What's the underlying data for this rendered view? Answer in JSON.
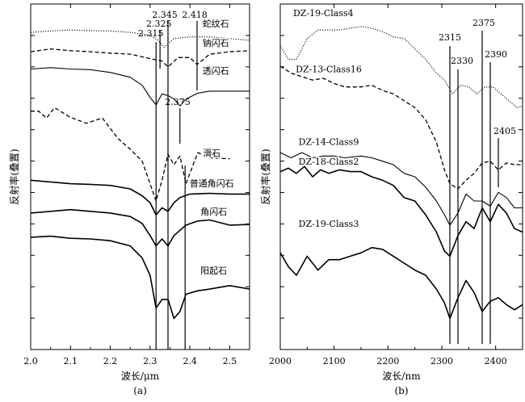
{
  "chart_data": [
    {
      "type": "line",
      "panel_label": "(a)",
      "xlabel": "波长/μm",
      "ylabel": "反射率(叠置)",
      "xlim": [
        2.0,
        2.55
      ],
      "x_ticks": [
        "2.0",
        "2.1",
        "2.2",
        "2.3",
        "2.4",
        "2.5"
      ],
      "x_tick_values": [
        2.0,
        2.1,
        2.2,
        2.3,
        2.4,
        2.5
      ],
      "ylim": [
        0,
        1
      ],
      "grid": false,
      "markers": [
        {
          "label": "2.315",
          "x": 2.315
        },
        {
          "label": "2.325",
          "x": 2.325
        },
        {
          "label": "2.345",
          "x": 2.345
        },
        {
          "label": "2.418",
          "x": 2.418
        },
        {
          "label": "2.375",
          "x": 2.375
        }
      ],
      "series": [
        {
          "name": "蛇纹石",
          "style": "dotted",
          "label_x": 2.465,
          "label_y": 0.935,
          "x": [
            2.0,
            2.05,
            2.1,
            2.15,
            2.2,
            2.25,
            2.3,
            2.32,
            2.335,
            2.36,
            2.4,
            2.45,
            2.5,
            2.55
          ],
          "y": [
            0.918,
            0.922,
            0.925,
            0.923,
            0.922,
            0.918,
            0.91,
            0.895,
            0.875,
            0.9,
            0.905,
            0.905,
            0.9,
            0.895
          ]
        },
        {
          "name": "钠闪石",
          "style": "dashed",
          "label_x": 2.465,
          "label_y": 0.878,
          "x": [
            2.0,
            2.05,
            2.1,
            2.15,
            2.2,
            2.25,
            2.3,
            2.33,
            2.345,
            2.37,
            2.4,
            2.418,
            2.45,
            2.5,
            2.55
          ],
          "y": [
            0.862,
            0.87,
            0.865,
            0.862,
            0.858,
            0.855,
            0.842,
            0.835,
            0.818,
            0.845,
            0.845,
            0.825,
            0.855,
            0.862,
            0.865
          ]
        },
        {
          "name": "透闪石",
          "style": "solid-thin",
          "label_x": 2.465,
          "label_y": 0.798,
          "x": [
            2.0,
            2.05,
            2.1,
            2.15,
            2.2,
            2.25,
            2.28,
            2.3,
            2.315,
            2.33,
            2.345,
            2.36,
            2.375,
            2.39,
            2.42,
            2.45,
            2.5,
            2.55
          ],
          "y": [
            0.812,
            0.816,
            0.812,
            0.81,
            0.802,
            0.788,
            0.765,
            0.73,
            0.708,
            0.74,
            0.735,
            0.725,
            0.705,
            0.725,
            0.742,
            0.748,
            0.748,
            0.748
          ]
        },
        {
          "name": "滑石",
          "style": "dashed",
          "label_x": 2.455,
          "label_y": 0.56,
          "x": [
            2.0,
            2.02,
            2.04,
            2.06,
            2.1,
            2.14,
            2.18,
            2.2,
            2.22,
            2.25,
            2.28,
            2.3,
            2.315,
            2.33,
            2.345,
            2.36,
            2.375,
            2.39,
            2.42,
            2.45,
            2.5
          ],
          "y": [
            0.69,
            0.69,
            0.67,
            0.7,
            0.672,
            0.655,
            0.67,
            0.64,
            0.61,
            0.58,
            0.545,
            0.48,
            0.43,
            0.49,
            0.565,
            0.535,
            0.56,
            0.48,
            0.57,
            0.555,
            0.552
          ]
        },
        {
          "name": "普通角闪石",
          "style": "solid",
          "label_x": 2.455,
          "label_y": 0.472,
          "x": [
            2.0,
            2.05,
            2.1,
            2.15,
            2.2,
            2.25,
            2.28,
            2.3,
            2.315,
            2.33,
            2.345,
            2.36,
            2.375,
            2.4,
            2.45,
            2.5,
            2.55
          ],
          "y": [
            0.49,
            0.485,
            0.48,
            0.478,
            0.475,
            0.465,
            0.445,
            0.425,
            0.39,
            0.41,
            0.4,
            0.425,
            0.44,
            0.45,
            0.452,
            0.45,
            0.45
          ]
        },
        {
          "name": "角闪石",
          "style": "solid",
          "label_x": 2.46,
          "label_y": 0.39,
          "x": [
            2.0,
            2.05,
            2.1,
            2.15,
            2.2,
            2.25,
            2.28,
            2.3,
            2.315,
            2.33,
            2.345,
            2.36,
            2.375,
            2.39,
            2.42,
            2.45,
            2.5,
            2.55
          ],
          "y": [
            0.395,
            0.4,
            0.405,
            0.4,
            0.395,
            0.385,
            0.365,
            0.33,
            0.3,
            0.32,
            0.3,
            0.33,
            0.345,
            0.36,
            0.372,
            0.375,
            0.36,
            0.362
          ]
        },
        {
          "name": "阳起石",
          "style": "solid",
          "label_x": 2.46,
          "label_y": 0.22,
          "x": [
            2.0,
            2.05,
            2.1,
            2.15,
            2.2,
            2.25,
            2.28,
            2.3,
            2.315,
            2.33,
            2.345,
            2.36,
            2.375,
            2.39,
            2.42,
            2.45,
            2.5,
            2.55
          ],
          "y": [
            0.325,
            0.328,
            0.322,
            0.32,
            0.315,
            0.3,
            0.265,
            0.215,
            0.12,
            0.145,
            0.145,
            0.09,
            0.11,
            0.16,
            0.17,
            0.175,
            0.185,
            0.175
          ]
        }
      ]
    },
    {
      "type": "line",
      "panel_label": "(b)",
      "xlabel": "波长/nm",
      "ylabel": "反射率(叠置)",
      "xlim": [
        2000,
        2450
      ],
      "x_ticks": [
        "2000",
        "2100",
        "2200",
        "2300",
        "2400"
      ],
      "x_tick_values": [
        2000,
        2100,
        2200,
        2300,
        2400
      ],
      "ylim": [
        0,
        1
      ],
      "grid": false,
      "markers": [
        {
          "label": "2315",
          "x": 2315
        },
        {
          "label": "2330",
          "x": 2330
        },
        {
          "label": "2375",
          "x": 2375
        },
        {
          "label": "2390",
          "x": 2390
        },
        {
          "label": "2405",
          "x": 2405
        }
      ],
      "series": [
        {
          "name": "DZ-19-Class4",
          "style": "dotted",
          "label_x": 2080,
          "label_y": 0.965,
          "x": [
            2000,
            2015,
            2030,
            2050,
            2070,
            2090,
            2110,
            2130,
            2150,
            2170,
            2190,
            2210,
            2230,
            2250,
            2270,
            2290,
            2305,
            2320,
            2335,
            2350,
            2365,
            2380,
            2395,
            2410,
            2425,
            2440,
            2450
          ],
          "y": [
            0.88,
            0.84,
            0.84,
            0.9,
            0.925,
            0.925,
            0.925,
            0.93,
            0.935,
            0.93,
            0.92,
            0.905,
            0.9,
            0.87,
            0.84,
            0.8,
            0.78,
            0.74,
            0.765,
            0.76,
            0.74,
            0.76,
            0.76,
            0.74,
            0.72,
            0.7,
            0.705
          ]
        },
        {
          "name": "DZ-13-Class16",
          "style": "dashed",
          "label_x": 2090,
          "label_y": 0.803,
          "x": [
            2000,
            2020,
            2040,
            2060,
            2080,
            2100,
            2120,
            2150,
            2170,
            2190,
            2210,
            2230,
            2250,
            2270,
            2290,
            2305,
            2315,
            2330,
            2345,
            2360,
            2375,
            2390,
            2405,
            2420,
            2435,
            2450
          ],
          "y": [
            0.82,
            0.8,
            0.79,
            0.78,
            0.785,
            0.77,
            0.76,
            0.76,
            0.765,
            0.75,
            0.74,
            0.72,
            0.7,
            0.665,
            0.6,
            0.52,
            0.48,
            0.465,
            0.49,
            0.51,
            0.54,
            0.545,
            0.52,
            0.54,
            0.535,
            0.535
          ]
        },
        {
          "name": "DZ-14-Class9",
          "style": "solid-thin",
          "label_x": 2090,
          "label_y": 0.592,
          "x": [
            2000,
            2020,
            2040,
            2060,
            2080,
            2100,
            2120,
            2150,
            2170,
            2190,
            2210,
            2230,
            2250,
            2270,
            2290,
            2305,
            2315,
            2330,
            2345,
            2360,
            2375,
            2390,
            2405,
            2420,
            2435,
            2450
          ],
          "y": [
            0.57,
            0.555,
            0.57,
            0.555,
            0.56,
            0.56,
            0.555,
            0.56,
            0.555,
            0.545,
            0.535,
            0.51,
            0.5,
            0.47,
            0.43,
            0.39,
            0.36,
            0.395,
            0.45,
            0.43,
            0.43,
            0.415,
            0.455,
            0.44,
            0.41,
            0.41
          ]
        },
        {
          "name": "DZ-18-Class2",
          "style": "solid",
          "label_x": 2090,
          "label_y": 0.535,
          "x": [
            2000,
            2015,
            2030,
            2045,
            2060,
            2075,
            2090,
            2110,
            2130,
            2150,
            2170,
            2190,
            2210,
            2230,
            2250,
            2270,
            2290,
            2305,
            2315,
            2330,
            2345,
            2360,
            2375,
            2390,
            2405,
            2420,
            2435,
            2450
          ],
          "y": [
            0.515,
            0.525,
            0.51,
            0.53,
            0.5,
            0.52,
            0.51,
            0.52,
            0.515,
            0.515,
            0.5,
            0.49,
            0.475,
            0.44,
            0.43,
            0.39,
            0.34,
            0.285,
            0.27,
            0.33,
            0.37,
            0.35,
            0.41,
            0.37,
            0.42,
            0.395,
            0.35,
            0.34
          ]
        },
        {
          "name": "DZ-19-Class3",
          "style": "solid",
          "label_x": 2090,
          "label_y": 0.355,
          "x": [
            2000,
            2015,
            2030,
            2050,
            2070,
            2090,
            2110,
            2130,
            2150,
            2170,
            2190,
            2210,
            2230,
            2250,
            2270,
            2290,
            2305,
            2315,
            2330,
            2345,
            2360,
            2375,
            2390,
            2405,
            2420,
            2435,
            2450
          ],
          "y": [
            0.28,
            0.24,
            0.215,
            0.27,
            0.23,
            0.26,
            0.26,
            0.27,
            0.28,
            0.295,
            0.29,
            0.27,
            0.25,
            0.23,
            0.215,
            0.175,
            0.135,
            0.09,
            0.15,
            0.2,
            0.165,
            0.11,
            0.14,
            0.15,
            0.13,
            0.115,
            0.13
          ]
        }
      ]
    }
  ]
}
